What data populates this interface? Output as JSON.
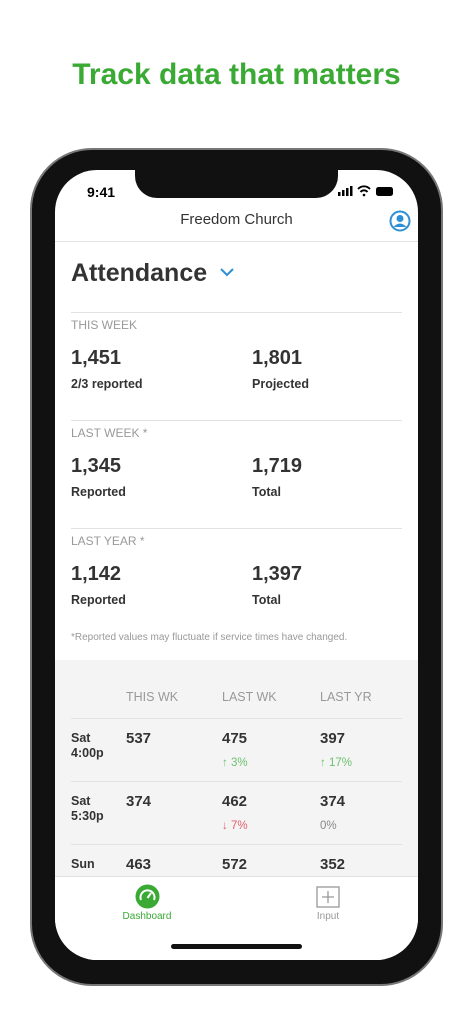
{
  "headline": "Track data that matters",
  "status_bar": {
    "time": "9:41"
  },
  "nav": {
    "title": "Freedom Church"
  },
  "page_title": "Attendance",
  "sections": [
    {
      "label": "THIS WEEK",
      "items": [
        {
          "value": "1,451",
          "caption": "2/3 reported"
        },
        {
          "value": "1,801",
          "caption": "Projected"
        }
      ]
    },
    {
      "label": "LAST WEEK *",
      "items": [
        {
          "value": "1,345",
          "caption": "Reported"
        },
        {
          "value": "1,719",
          "caption": "Total"
        }
      ]
    },
    {
      "label": "LAST YEAR *",
      "items": [
        {
          "value": "1,142",
          "caption": "Reported"
        },
        {
          "value": "1,397",
          "caption": "Total"
        }
      ]
    }
  ],
  "footnote": "*Reported values may fluctuate if service times have changed.",
  "table": {
    "headers": [
      "THIS WK",
      "LAST WK",
      "LAST YR"
    ],
    "rows": [
      {
        "label": [
          "Sat",
          "4:00p"
        ],
        "cells": [
          {
            "value": "537"
          },
          {
            "value": "475",
            "change": "↑ 3%",
            "color": "#6cc070"
          },
          {
            "value": "397",
            "change": "↑ 17%",
            "color": "#6cc070"
          }
        ]
      },
      {
        "label": [
          "Sat",
          "5:30p"
        ],
        "cells": [
          {
            "value": "374"
          },
          {
            "value": "462",
            "change": "↓ 7%",
            "color": "#e0606a"
          },
          {
            "value": "374",
            "change": "0%",
            "color": "#888888"
          }
        ]
      },
      {
        "label": [
          "Sun"
        ],
        "cells": [
          {
            "value": "463"
          },
          {
            "value": "572"
          },
          {
            "value": "352"
          }
        ]
      }
    ]
  },
  "tabs": [
    {
      "label": "Dashboard",
      "color": "#3aaa35"
    },
    {
      "label": "Input",
      "color": "#999999"
    }
  ]
}
